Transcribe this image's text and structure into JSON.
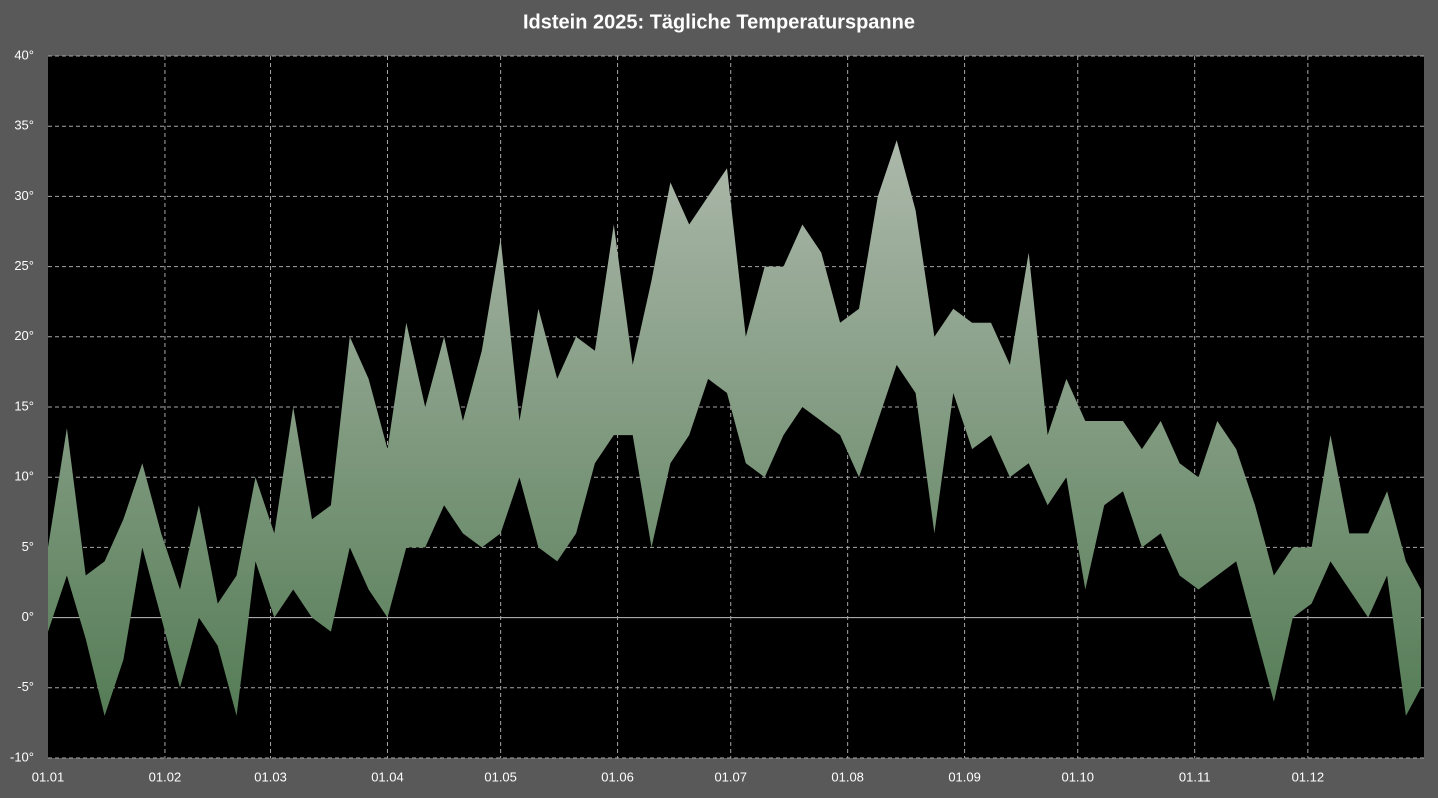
{
  "chart_data": {
    "type": "range-area",
    "title": "Idstein 2025:  Tägliche Temperaturspanne",
    "x": [
      "01.01",
      "06.01",
      "11.01",
      "16.01",
      "21.01",
      "26.01",
      "31.01",
      "05.02",
      "10.02",
      "15.02",
      "20.02",
      "25.02",
      "02.03",
      "07.03",
      "12.03",
      "17.03",
      "22.03",
      "27.03",
      "01.04",
      "06.04",
      "11.04",
      "16.04",
      "21.04",
      "26.04",
      "01.05",
      "06.05",
      "11.05",
      "16.05",
      "21.05",
      "26.05",
      "31.05",
      "05.06",
      "10.06",
      "15.06",
      "20.06",
      "25.06",
      "30.06",
      "05.07",
      "10.07",
      "15.07",
      "20.07",
      "25.07",
      "30.07",
      "04.08",
      "09.08",
      "14.08",
      "19.08",
      "24.08",
      "29.08",
      "03.09",
      "08.09",
      "13.09",
      "18.09",
      "23.09",
      "28.09",
      "03.10",
      "08.10",
      "13.10",
      "18.10",
      "23.10",
      "28.10",
      "02.11",
      "07.11",
      "12.11",
      "17.11",
      "22.11",
      "27.11",
      "02.12",
      "07.12",
      "12.12",
      "17.12",
      "22.12",
      "27.12",
      "31.12"
    ],
    "series": [
      {
        "values": [
          -1,
          3,
          -1.5,
          -7,
          -3,
          5,
          0,
          -5,
          0,
          -2,
          -7,
          4,
          0,
          2,
          0,
          -1,
          5,
          2,
          0,
          5,
          5,
          8,
          6,
          5,
          6,
          10,
          5,
          4,
          6,
          11,
          13,
          13,
          5,
          11,
          13,
          17,
          16,
          11,
          10,
          13,
          15,
          14,
          13,
          10,
          14,
          18,
          16,
          6,
          16,
          12,
          13,
          10,
          11,
          8,
          10,
          2,
          8,
          9,
          5,
          6,
          3,
          2,
          3,
          4,
          -1,
          -6,
          0,
          1,
          4,
          2,
          0,
          3,
          -7,
          -5
        ]
      },
      {
        "values": [
          5,
          13.5,
          3,
          4,
          7,
          11,
          6,
          2,
          8,
          1,
          3,
          10,
          6,
          15,
          7,
          8,
          20,
          17,
          12,
          21,
          15,
          20,
          14,
          19,
          27,
          14,
          22,
          17,
          20,
          19,
          28,
          18,
          24,
          31,
          28,
          30,
          32,
          20,
          25,
          25,
          28,
          26,
          21,
          22,
          30,
          34,
          29,
          20,
          22,
          21,
          21,
          18,
          26,
          13,
          17,
          14,
          14,
          14,
          12,
          14,
          11,
          10,
          14,
          12,
          8,
          3,
          5,
          5,
          13,
          6,
          6,
          9,
          4,
          2
        ]
      }
    ],
    "gradient": [
      "#b9c1b7",
      "#4f7850"
    ],
    "xlim": [
      "01.01",
      "31.12"
    ],
    "xticks": [
      "01.01",
      "01.02",
      "01.03",
      "01.04",
      "01.05",
      "01.06",
      "01.07",
      "01.08",
      "01.09",
      "01.10",
      "01.11",
      "01.12"
    ],
    "ylim": [
      -10,
      40
    ],
    "yticks": [
      {
        "value": -10,
        "label": "-10°"
      },
      {
        "value": -5,
        "label": "-5°"
      },
      {
        "value": 0,
        "label": "0°"
      },
      {
        "value": 5,
        "label": "5°"
      },
      {
        "value": 10,
        "label": "10°"
      },
      {
        "value": 15,
        "label": "15°"
      },
      {
        "value": 20,
        "label": "20°"
      },
      {
        "value": 25,
        "label": "25°"
      },
      {
        "value": 30,
        "label": "30°"
      },
      {
        "value": 35,
        "label": "35°"
      },
      {
        "value": 40,
        "label": "40°"
      }
    ],
    "grid": true
  }
}
